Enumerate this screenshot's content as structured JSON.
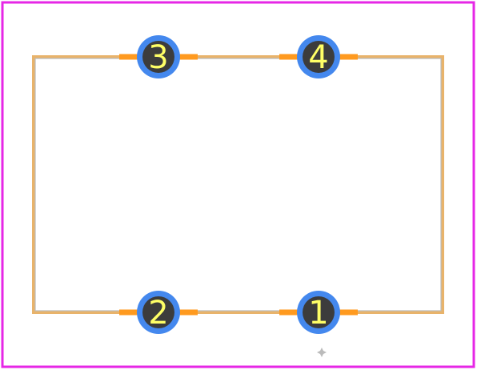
{
  "footprint": {
    "colors": {
      "board_outline": "#e627e6",
      "silkscreen": "#e8b36b",
      "silkscreen_inner": "#bbbbbb",
      "pad_trace": "#ff9a1f",
      "pad": "#4488ee",
      "drill": "#3c3c3c",
      "pin_label": "#ffff66",
      "origin_marker": "#bbbbbb"
    },
    "pins": [
      {
        "number": "1",
        "row": "bottom",
        "side": "right"
      },
      {
        "number": "2",
        "row": "bottom",
        "side": "left"
      },
      {
        "number": "3",
        "row": "top",
        "side": "left"
      },
      {
        "number": "4",
        "row": "top",
        "side": "right"
      }
    ],
    "origin_marker": {
      "icon": "crosshair-icon"
    }
  }
}
